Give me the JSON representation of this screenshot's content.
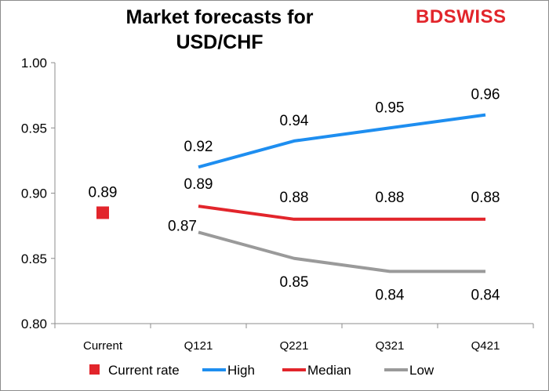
{
  "brand": {
    "logo_text": "BDSWISS",
    "logo_color": "#e2252b"
  },
  "chart_data": {
    "type": "line",
    "title": "Market forecasts for USD/CHF",
    "title_lines": [
      "Market forecasts for",
      "USD/CHF"
    ],
    "categories": [
      "Current",
      "Q121",
      "Q221",
      "Q321",
      "Q421"
    ],
    "ylim": [
      0.8,
      1.0
    ],
    "yticks": [
      "1.00",
      "0.95",
      "0.90",
      "0.85",
      "0.80"
    ],
    "ytick_values": [
      1.0,
      0.95,
      0.9,
      0.85,
      0.8
    ],
    "grid": false,
    "legend_position": "bottom",
    "series": [
      {
        "name": "Current rate",
        "kind": "marker",
        "color": "#e2252b",
        "values": [
          0.885,
          null,
          null,
          null,
          null
        ],
        "labels": [
          "0.89",
          "",
          "",
          "",
          ""
        ]
      },
      {
        "name": "High",
        "kind": "line",
        "color": "#1e8ef0",
        "values": [
          null,
          0.92,
          0.94,
          0.95,
          0.96
        ],
        "labels": [
          "",
          "0.92",
          "0.94",
          "0.95",
          "0.96"
        ]
      },
      {
        "name": "Median",
        "kind": "line",
        "color": "#e2252b",
        "values": [
          null,
          0.89,
          0.88,
          0.88,
          0.88
        ],
        "labels": [
          "",
          "0.89",
          "0.88",
          "0.88",
          "0.88"
        ]
      },
      {
        "name": "Low",
        "kind": "line",
        "color": "#9a9a9a",
        "values": [
          null,
          0.87,
          0.85,
          0.84,
          0.84
        ],
        "labels": [
          "",
          "0.87",
          "0.85",
          "0.84",
          "0.84"
        ]
      }
    ]
  }
}
